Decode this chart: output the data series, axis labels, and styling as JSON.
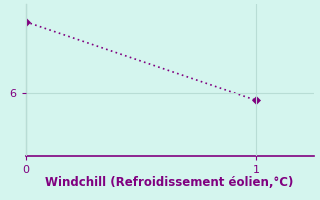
{
  "x": [
    0,
    1
  ],
  "y": [
    8.8,
    5.7
  ],
  "line_color": "#800080",
  "marker": "D",
  "marker_size": 4,
  "background_color": "#d4f5ee",
  "grid_color": "#b8ddd5",
  "spine_color": "#808080",
  "bottom_spine_color": "#800080",
  "xlabel": "Windchill (Refroidissement éolien,°C)",
  "xlabel_color": "#800080",
  "xlabel_fontsize": 8.5,
  "tick_color": "#800080",
  "tick_fontsize": 8,
  "xlim": [
    0,
    1.25
  ],
  "ylim": [
    3.5,
    9.5
  ],
  "yticks": [
    6
  ],
  "xticks": [
    0,
    1
  ],
  "figsize": [
    3.2,
    2.0
  ],
  "dpi": 100
}
